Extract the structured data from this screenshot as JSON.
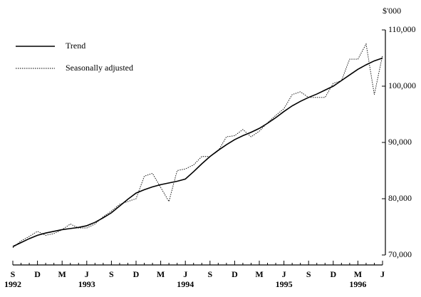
{
  "chart_data": {
    "type": "line",
    "y_unit": "$'000",
    "categories": [
      "S",
      null,
      null,
      "D",
      null,
      null,
      "M",
      null,
      null,
      "J",
      null,
      null,
      "S",
      null,
      null,
      "D",
      null,
      null,
      "M",
      null,
      null,
      "J",
      null,
      null,
      "S",
      null,
      null,
      "D",
      null,
      null,
      "M",
      null,
      null,
      "J",
      null,
      null,
      "S",
      null,
      null,
      "D",
      null,
      null,
      "M",
      null,
      null,
      "J"
    ],
    "year_labels": [
      "1992",
      null,
      null,
      null,
      null,
      null,
      null,
      null,
      null,
      "1993",
      null,
      null,
      null,
      null,
      null,
      null,
      null,
      null,
      null,
      null,
      null,
      "1994",
      null,
      null,
      null,
      null,
      null,
      null,
      null,
      null,
      null,
      null,
      null,
      "1995",
      null,
      null,
      null,
      null,
      null,
      null,
      null,
      null,
      "1996",
      null,
      null,
      null
    ],
    "series": [
      {
        "name": "Trend",
        "color": "#000000",
        "dash": "solid",
        "values": [
          71.5,
          72.2,
          72.9,
          73.5,
          73.9,
          74.2,
          74.5,
          74.7,
          74.9,
          75.2,
          75.8,
          76.6,
          77.5,
          78.7,
          79.9,
          81.0,
          81.6,
          82.1,
          82.5,
          82.8,
          83.1,
          83.5,
          84.8,
          86.2,
          87.5,
          88.6,
          89.6,
          90.5,
          91.2,
          91.8,
          92.5,
          93.4,
          94.4,
          95.5,
          96.5,
          97.3,
          98.0,
          98.6,
          99.3,
          100.0,
          101.0,
          102.0,
          103.0,
          103.8,
          104.5,
          105.0
        ]
      },
      {
        "name": "Seasonally adjusted",
        "color": "#000000",
        "dash": "dotted",
        "values": [
          71.3,
          72.5,
          73.3,
          74.2,
          73.5,
          73.8,
          74.5,
          75.5,
          74.8,
          74.8,
          75.5,
          76.8,
          77.8,
          79.0,
          79.5,
          80.0,
          84.0,
          84.5,
          82.0,
          79.5,
          85.0,
          85.3,
          86.0,
          87.5,
          87.5,
          88.5,
          91.0,
          91.2,
          92.3,
          91.0,
          92.0,
          93.5,
          94.8,
          96.0,
          98.5,
          99.0,
          98.0,
          98.0,
          98.0,
          100.5,
          101.0,
          104.8,
          104.8,
          107.5,
          98.5,
          105.5
        ]
      }
    ],
    "ylim": [
      70,
      110
    ],
    "yticks": [
      {
        "value": 70,
        "label": "70,000"
      },
      {
        "value": 80,
        "label": "80,000"
      },
      {
        "value": 90,
        "label": "90,000"
      },
      {
        "value": 100,
        "label": "100,000"
      },
      {
        "value": 110,
        "label": "110,000"
      }
    ],
    "y_axis_side": "right",
    "legend": "top-left"
  }
}
